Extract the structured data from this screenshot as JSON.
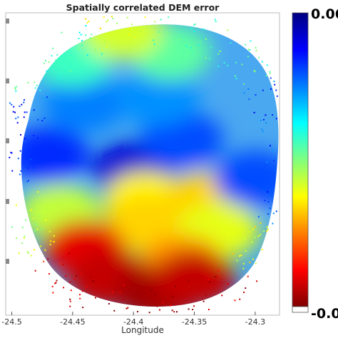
{
  "chart_data": {
    "type": "heatmap",
    "title": "Spatially correlated DEM error",
    "xlabel": "Longitude",
    "ylabel": "",
    "x_ticks": [
      "-24.5",
      "-24.45",
      "-24.4",
      "-24.35",
      "-24.3"
    ],
    "xlim": [
      -24.505,
      -24.28
    ],
    "colormap": "jet",
    "colorbar": {
      "max_label": "0.06",
      "min_label": "-0.0",
      "range": [
        0,
        0.06
      ]
    },
    "regions": [
      {
        "lon": -24.4,
        "lat": 0.52,
        "value": 0.055
      },
      {
        "lon": -24.47,
        "lat": 0.47,
        "value": 0.05
      },
      {
        "lon": -24.36,
        "lat": 0.42,
        "value": 0.048
      },
      {
        "lon": -24.44,
        "lat": 0.3,
        "value": 0.045
      },
      {
        "lon": -24.38,
        "lat": 0.28,
        "value": 0.044
      },
      {
        "lon": -24.45,
        "lat": 0.15,
        "value": 0.034
      },
      {
        "lon": -24.37,
        "lat": 0.13,
        "value": 0.032
      },
      {
        "lon": -24.41,
        "lat": 0.06,
        "value": 0.025
      },
      {
        "lon": -24.39,
        "lat": 0.62,
        "value": 0.022
      },
      {
        "lon": -24.39,
        "lat": 0.7,
        "value": 0.02
      },
      {
        "lon": -24.34,
        "lat": 0.62,
        "value": 0.02
      },
      {
        "lon": -24.3,
        "lat": 0.55,
        "value": 0.048
      },
      {
        "lon": -24.46,
        "lat": 0.66,
        "value": 0.026
      },
      {
        "lon": -24.33,
        "lat": 0.72,
        "value": 0.024
      },
      {
        "lon": -24.36,
        "lat": 0.83,
        "value": 0.016
      },
      {
        "lon": -24.44,
        "lat": 0.78,
        "value": 0.006
      },
      {
        "lon": -24.42,
        "lat": 0.88,
        "value": 0.004
      },
      {
        "lon": -24.38,
        "lat": 0.93,
        "value": 0.002
      },
      {
        "lon": -24.35,
        "lat": 0.88,
        "value": 0.004
      }
    ]
  },
  "colors": {
    "jet": [
      "#00007f",
      "#0000ff",
      "#007fff",
      "#00ffff",
      "#7fff7f",
      "#ffff00",
      "#ff7f00",
      "#ff0000",
      "#7f0000"
    ],
    "frame": "#bbbbbb",
    "background": "#ffffff"
  }
}
